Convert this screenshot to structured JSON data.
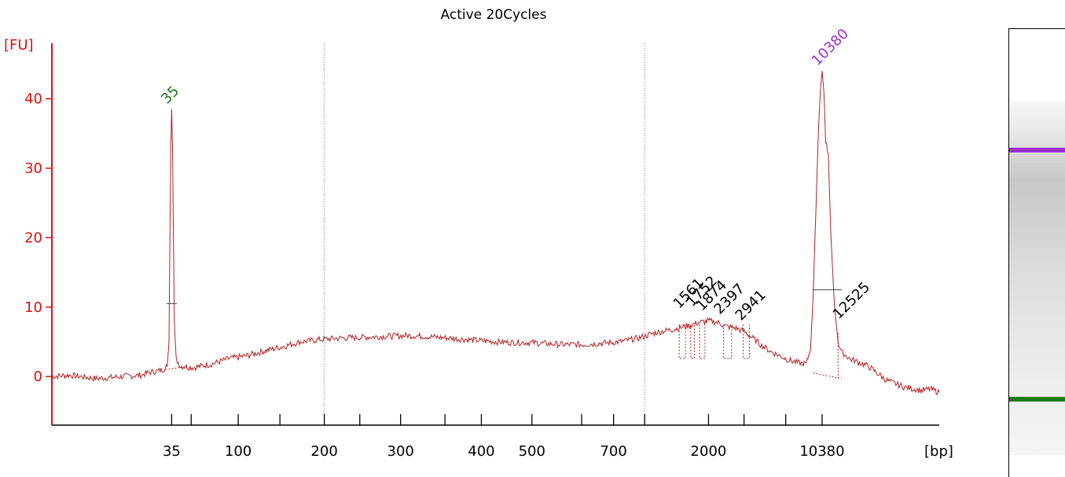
{
  "chart_data": {
    "type": "line",
    "title": "Active 20Cycles",
    "xlabel": "[bp]",
    "ylabel": "[FU]",
    "ylim": [
      -7,
      48
    ],
    "yticks": [
      0,
      10,
      20,
      30,
      40
    ],
    "xticks": [
      {
        "label": "35",
        "pos": 0.135
      },
      {
        "label": "",
        "pos": 0.157
      },
      {
        "label": "100",
        "pos": 0.21
      },
      {
        "label": "",
        "pos": 0.257
      },
      {
        "label": "200",
        "pos": 0.307
      },
      {
        "label": "",
        "pos": 0.347
      },
      {
        "label": "300",
        "pos": 0.393
      },
      {
        "label": "",
        "pos": 0.443
      },
      {
        "label": "400",
        "pos": 0.484
      },
      {
        "label": "500",
        "pos": 0.541
      },
      {
        "label": "",
        "pos": 0.597
      },
      {
        "label": "700",
        "pos": 0.633
      },
      {
        "label": "",
        "pos": 0.668
      },
      {
        "label": "2000",
        "pos": 0.74
      },
      {
        "label": "",
        "pos": 0.78
      },
      {
        "label": "",
        "pos": 0.827
      },
      {
        "label": "10380",
        "pos": 0.868
      }
    ],
    "gridlines_at": [
      0.307,
      0.668
    ],
    "series": [
      {
        "color": "#b22222",
        "points": [
          [
            0.0,
            0.0
          ],
          [
            0.02,
            0.2
          ],
          [
            0.05,
            -0.3
          ],
          [
            0.08,
            0.0
          ],
          [
            0.1,
            0.2
          ],
          [
            0.11,
            0.6
          ],
          [
            0.12,
            0.8
          ],
          [
            0.125,
            1.0
          ],
          [
            0.13,
            1.5
          ],
          [
            0.132,
            5
          ],
          [
            0.133,
            20
          ],
          [
            0.134,
            33
          ],
          [
            0.135,
            38.5
          ],
          [
            0.136,
            33
          ],
          [
            0.137,
            20
          ],
          [
            0.138,
            8
          ],
          [
            0.14,
            2.5
          ],
          [
            0.145,
            1.5
          ],
          [
            0.16,
            1.3
          ],
          [
            0.18,
            1.8
          ],
          [
            0.2,
            2.6
          ],
          [
            0.22,
            3.0
          ],
          [
            0.24,
            3.7
          ],
          [
            0.26,
            4.3
          ],
          [
            0.28,
            5.0
          ],
          [
            0.3,
            5.3
          ],
          [
            0.32,
            5.5
          ],
          [
            0.34,
            5.6
          ],
          [
            0.36,
            5.7
          ],
          [
            0.38,
            5.8
          ],
          [
            0.4,
            5.9
          ],
          [
            0.42,
            5.8
          ],
          [
            0.44,
            5.6
          ],
          [
            0.46,
            5.4
          ],
          [
            0.48,
            5.2
          ],
          [
            0.5,
            5.0
          ],
          [
            0.52,
            4.9
          ],
          [
            0.54,
            4.9
          ],
          [
            0.56,
            4.7
          ],
          [
            0.58,
            4.6
          ],
          [
            0.6,
            4.6
          ],
          [
            0.62,
            4.8
          ],
          [
            0.64,
            5.0
          ],
          [
            0.66,
            5.5
          ],
          [
            0.68,
            6.3
          ],
          [
            0.7,
            6.8
          ],
          [
            0.72,
            7.4
          ],
          [
            0.73,
            7.8
          ],
          [
            0.74,
            8.0
          ],
          [
            0.75,
            7.8
          ],
          [
            0.76,
            7.2
          ],
          [
            0.77,
            7.0
          ],
          [
            0.78,
            6.5
          ],
          [
            0.79,
            5.5
          ],
          [
            0.8,
            4.5
          ],
          [
            0.81,
            3.6
          ],
          [
            0.82,
            3.0
          ],
          [
            0.83,
            2.4
          ],
          [
            0.84,
            2.0
          ],
          [
            0.85,
            1.8
          ],
          [
            0.855,
            4
          ],
          [
            0.858,
            12
          ],
          [
            0.861,
            24
          ],
          [
            0.864,
            36
          ],
          [
            0.866,
            41
          ],
          [
            0.868,
            44
          ],
          [
            0.87,
            41
          ],
          [
            0.872,
            34
          ],
          [
            0.875,
            32
          ],
          [
            0.878,
            20
          ],
          [
            0.882,
            10
          ],
          [
            0.886,
            5
          ],
          [
            0.89,
            3.5
          ],
          [
            0.9,
            2.5
          ],
          [
            0.92,
            1.5
          ],
          [
            0.94,
            -0.5
          ],
          [
            0.96,
            -1.5
          ],
          [
            0.98,
            -2.0
          ],
          [
            0.99,
            -1.8
          ],
          [
            1.0,
            -2.3
          ]
        ]
      }
    ],
    "peak_labels": [
      {
        "text": "35",
        "x": 0.135,
        "y": 38.5,
        "color": "#1a7a1a"
      },
      {
        "text": "10380",
        "x": 0.868,
        "y": 44,
        "color": "#9b30d0"
      },
      {
        "text": "1561",
        "x": 0.712,
        "y": 9.0,
        "color": "#000000"
      },
      {
        "text": "1752",
        "x": 0.727,
        "y": 9.3,
        "color": "#000000"
      },
      {
        "text": "1874",
        "x": 0.738,
        "y": 8.7,
        "color": "#000000"
      },
      {
        "text": "2397",
        "x": 0.758,
        "y": 8.2,
        "color": "#000000"
      },
      {
        "text": "2941",
        "x": 0.782,
        "y": 7.3,
        "color": "#000000"
      },
      {
        "text": "12525",
        "x": 0.892,
        "y": 7.5,
        "color": "#000000"
      }
    ],
    "gel": {
      "bands": [
        {
          "position": 0.13,
          "color": "#9b30d0"
        },
        {
          "position": 0.835,
          "color": "#1a7a1a"
        }
      ]
    }
  }
}
